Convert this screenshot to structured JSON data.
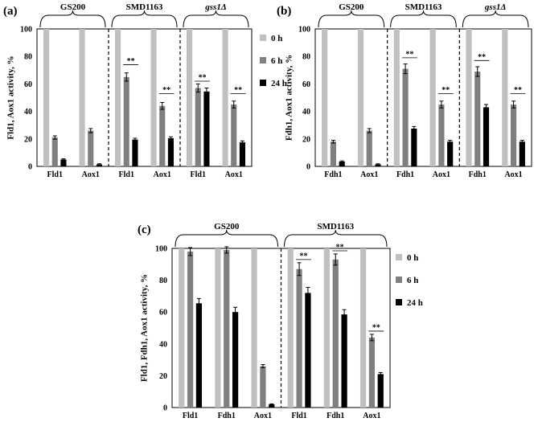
{
  "colors": {
    "0 h": "#c0c0c0",
    "6 h": "#7f7f7f",
    "24 h": "#000000"
  },
  "chart_data": [
    {
      "id": "a",
      "panel_label": "(a)",
      "type": "bar",
      "ylabel": "Fld1, Aox1 activity, %",
      "ylim": [
        0,
        100
      ],
      "yticks": [
        0,
        20,
        40,
        60,
        80,
        100
      ],
      "legend": [
        "0 h",
        "6 h",
        "24 h"
      ],
      "strains": [
        {
          "name": "GS200",
          "italic": false,
          "categories": [
            "Fld1",
            "Aox1"
          ]
        },
        {
          "name": "SMD1163",
          "italic": false,
          "categories": [
            "Fld1",
            "Aox1"
          ]
        },
        {
          "name": "gss1Δ",
          "italic": true,
          "categories": [
            "Fld1",
            "Aox1"
          ]
        }
      ],
      "series": [
        {
          "name": "0 h",
          "values": [
            100,
            100,
            100,
            100,
            100,
            100
          ]
        },
        {
          "name": "6 h",
          "values": [
            21,
            26,
            65,
            44,
            57,
            45
          ],
          "errors": [
            1.2,
            1.5,
            3,
            2.5,
            3,
            2.5
          ]
        },
        {
          "name": "24 h",
          "values": [
            5,
            1.5,
            19.5,
            20.5,
            54.5,
            17.5
          ],
          "errors": [
            0.5,
            0.4,
            1,
            1,
            2.5,
            1
          ]
        }
      ],
      "significance": [
        {
          "category_index": 2,
          "label": "**",
          "y": 74
        },
        {
          "category_index": 3,
          "label": "**",
          "y": 53
        },
        {
          "category_index": 4,
          "label": "**",
          "y": 62
        },
        {
          "category_index": 5,
          "label": "**",
          "y": 53
        }
      ]
    },
    {
      "id": "b",
      "panel_label": "(b)",
      "type": "bar",
      "ylabel": "Fdh1, Aox1 activity, %",
      "ylim": [
        0,
        100
      ],
      "yticks": [
        0,
        20,
        40,
        60,
        80,
        100
      ],
      "legend": [],
      "strains": [
        {
          "name": "GS200",
          "italic": false,
          "categories": [
            "Fdh1",
            "Aox1"
          ]
        },
        {
          "name": "SMD1163",
          "italic": false,
          "categories": [
            "Fdh1",
            "Aox1"
          ]
        },
        {
          "name": "gss1Δ",
          "italic": true,
          "categories": [
            "Fdh1",
            "Aox1"
          ]
        }
      ],
      "series": [
        {
          "name": "0 h",
          "values": [
            100,
            100,
            100,
            100,
            100,
            100
          ]
        },
        {
          "name": "6 h",
          "values": [
            18,
            26,
            71,
            45,
            69,
            45
          ],
          "errors": [
            1,
            1.5,
            3.5,
            2.5,
            3.5,
            2.5
          ]
        },
        {
          "name": "24 h",
          "values": [
            3.5,
            1.5,
            27.5,
            18,
            43,
            18
          ],
          "errors": [
            0.5,
            0.4,
            1.5,
            1,
            2,
            1
          ]
        }
      ],
      "significance": [
        {
          "category_index": 2,
          "label": "**",
          "y": 79
        },
        {
          "category_index": 3,
          "label": "**",
          "y": 53
        },
        {
          "category_index": 4,
          "label": "**",
          "y": 77
        },
        {
          "category_index": 5,
          "label": "**",
          "y": 53
        }
      ]
    },
    {
      "id": "c",
      "panel_label": "(c)",
      "type": "bar",
      "ylabel": "Fld1, Fdh1, Aox1 activity, %",
      "ylim": [
        0,
        100
      ],
      "yticks": [
        0,
        20,
        40,
        60,
        80,
        100
      ],
      "legend": [
        "0 h",
        "6 h",
        "24 h"
      ],
      "strains": [
        {
          "name": "GS200",
          "italic": false,
          "categories": [
            "Fld1",
            "Fdh1",
            "Aox1"
          ]
        },
        {
          "name": "SMD1163",
          "italic": false,
          "categories": [
            "Fld1",
            "Fdh1",
            "Aox1"
          ]
        }
      ],
      "series": [
        {
          "name": "0 h",
          "values": [
            100,
            100,
            100,
            100,
            100,
            100
          ]
        },
        {
          "name": "6 h",
          "values": [
            98,
            99,
            26,
            87,
            93,
            44
          ],
          "errors": [
            2.5,
            2,
            1,
            4,
            3.5,
            2
          ]
        },
        {
          "name": "24 h",
          "values": [
            65.5,
            60,
            2,
            72,
            58.5,
            21
          ],
          "errors": [
            3,
            3,
            0.3,
            3.5,
            3,
            1
          ]
        }
      ],
      "significance": [
        {
          "category_index": 3,
          "label": "**",
          "y": 93
        },
        {
          "category_index": 4,
          "label": "**",
          "y": 98.5
        },
        {
          "category_index": 5,
          "label": "**",
          "y": 48
        }
      ]
    }
  ]
}
